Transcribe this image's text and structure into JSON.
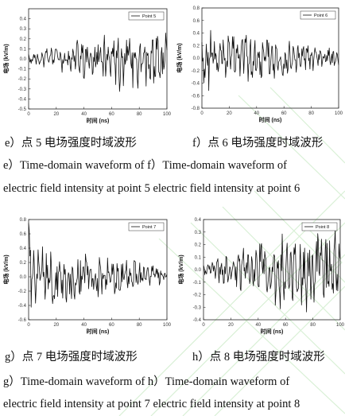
{
  "chart_data": [
    {
      "type": "line",
      "panel": "e",
      "legend": "Point 5",
      "xlabel": "时间 (ns)",
      "ylabel": "电场 (kV/m)",
      "xlim": [
        0,
        100
      ],
      "ylim": [
        -0.5,
        0.5
      ],
      "xticks": [
        "0",
        "20",
        "40",
        "60",
        "80",
        "100"
      ],
      "yticks": [
        "0.4",
        "0.3",
        "0.2",
        "0.1",
        "0.0",
        "-0.1",
        "-0.2",
        "-0.3",
        "-0.4",
        "-0.5"
      ],
      "grid": false,
      "legend_position": "top-right",
      "series": [
        {
          "name": "Point 5",
          "style": "growing",
          "amplitude": 0.3,
          "start": 0.0
        }
      ]
    },
    {
      "type": "line",
      "panel": "f",
      "legend": "Point 6",
      "xlabel": "时间 (ns)",
      "ylabel": "电场 (kV/m)",
      "xlim": [
        0,
        100
      ],
      "ylim": [
        -0.8,
        0.8
      ],
      "xticks": [
        "0",
        "20",
        "40",
        "60",
        "80",
        "100"
      ],
      "yticks": [
        "0.8",
        "0.6",
        "0.4",
        "0.2",
        "0.0",
        "-0.2",
        "-0.4",
        "-0.6",
        "-0.8"
      ],
      "grid": false,
      "legend_position": "top-right",
      "series": [
        {
          "name": "Point 6",
          "style": "decaying",
          "amplitude": 0.5,
          "start": 0.0
        }
      ]
    },
    {
      "type": "line",
      "panel": "g",
      "legend": "Point 7",
      "xlabel": "时间 (ns)",
      "ylabel": "电场 (kV/m)",
      "xlim": [
        0,
        100
      ],
      "ylim": [
        -0.6,
        0.8
      ],
      "xticks": [
        "0",
        "20",
        "40",
        "60",
        "80",
        "100"
      ],
      "yticks": [
        "0.8",
        "0.6",
        "0.4",
        "0.2",
        "0.0",
        "-0.2",
        "-0.4",
        "-0.6"
      ],
      "grid": false,
      "legend_position": "top-right",
      "series": [
        {
          "name": "Point 7",
          "style": "decaying",
          "amplitude": 0.45,
          "start": 0.75
        }
      ]
    },
    {
      "type": "line",
      "panel": "h",
      "legend": "Point 8",
      "xlabel": "时间 (ns)",
      "ylabel": "电场 (kV/m)",
      "xlim": [
        0,
        100
      ],
      "ylim": [
        -0.4,
        0.4
      ],
      "xticks": [
        "0",
        "20",
        "40",
        "60",
        "80",
        "100"
      ],
      "yticks": [
        "0.4",
        "0.3",
        "0.2",
        "0.1",
        "0.0",
        "-0.1",
        "-0.2",
        "-0.3",
        "-0.4"
      ],
      "grid": false,
      "legend_position": "top-right",
      "series": [
        {
          "name": "Point 8",
          "style": "growing",
          "amplitude": 0.32,
          "start": 0.0
        }
      ]
    }
  ],
  "captions": {
    "e_cn": "e）点 5 电场强度时域波形",
    "f_cn": "f）点 6 电场强度时域波形",
    "ef_en_1": "e）Time-domain waveform of   f）Time-domain waveform of",
    "ef_en_2": "electric field intensity at point 5 electric field intensity at point 6",
    "g_cn": "g）点 7 电场强度时域波形",
    "h_cn": "h）点 8 电场强度时域波形",
    "gh_en_1": "g）Time-domain waveform of   h）Time-domain waveform of",
    "gh_en_2": "electric field intensity at point 7 electric field intensity at point 8"
  },
  "colors": {
    "trace": "#111111",
    "background_lines": "#d9f0d6"
  }
}
